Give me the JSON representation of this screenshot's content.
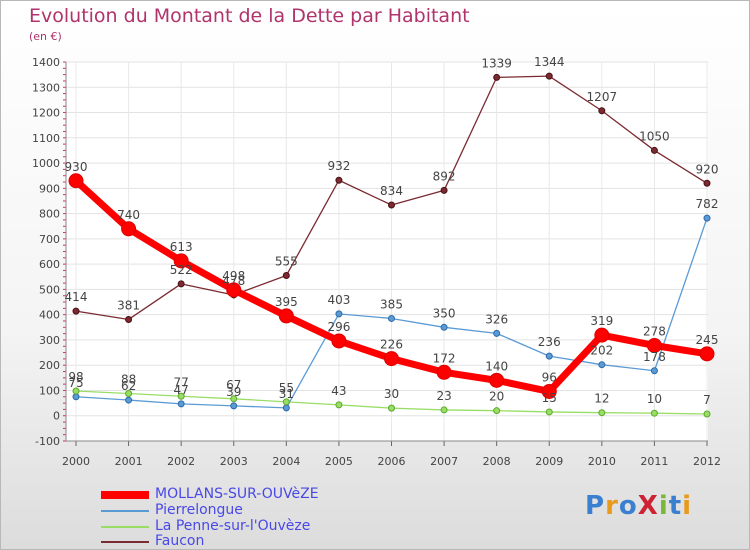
{
  "title": "Evolution du Montant de la Dette par Habitant",
  "unit_label": "(en €)",
  "logo_text": "ProXiti",
  "chart_data": {
    "type": "line",
    "title": "Evolution du Montant de la Dette par Habitant",
    "ylabel": "(en €)",
    "xlabel": "",
    "x": [
      2000,
      2001,
      2002,
      2003,
      2004,
      2005,
      2006,
      2007,
      2008,
      2009,
      2010,
      2011,
      2012
    ],
    "ylim": [
      -100,
      1400
    ],
    "yticks": [
      -100,
      0,
      100,
      200,
      300,
      400,
      500,
      600,
      700,
      800,
      900,
      1000,
      1100,
      1200,
      1300,
      1400
    ],
    "grid": true,
    "legend_position": "bottom-left",
    "series": [
      {
        "name": "MOLLANS-SUR-OUVèZE",
        "color": "#ff0000",
        "values": [
          930,
          740,
          613,
          498,
          395,
          296,
          226,
          172,
          140,
          96,
          319,
          278,
          245
        ]
      },
      {
        "name": "Pierrelongue",
        "color": "#5b9bd5",
        "values": [
          75,
          62,
          47,
          39,
          31,
          403,
          385,
          350,
          326,
          236,
          202,
          178,
          782
        ]
      },
      {
        "name": "La Penne-sur-l'Ouvèze",
        "color": "#99dd66",
        "values": [
          98,
          88,
          77,
          67,
          55,
          43,
          30,
          23,
          20,
          15,
          12,
          10,
          7
        ]
      },
      {
        "name": "Faucon",
        "color": "#7a2a30",
        "values": [
          414,
          381,
          522,
          478,
          555,
          932,
          834,
          892,
          1339,
          1344,
          1207,
          1050,
          920
        ]
      }
    ]
  }
}
